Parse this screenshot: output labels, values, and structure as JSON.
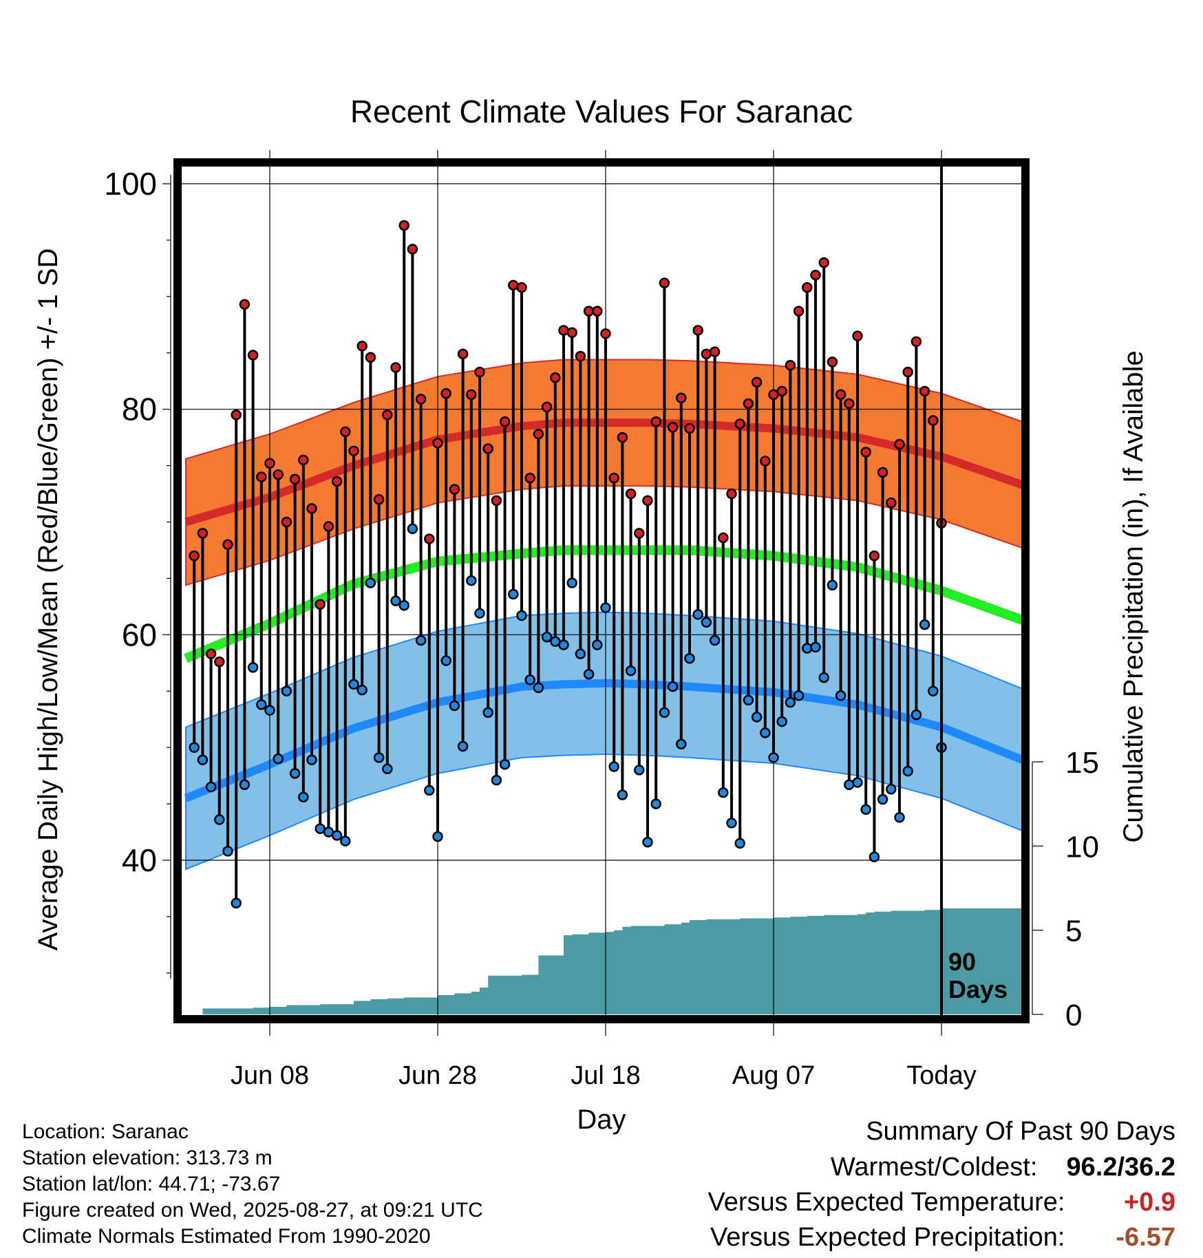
{
  "chart_data": {
    "type": "line",
    "title": "Recent Climate Values For Saranac",
    "xlabel": "Day",
    "ylabel": "Average Daily High/Low/Mean (Red/Blue/Green) +/- 1 SD",
    "y2label": "Cumulative Precipitation (in), If Available",
    "ylim": [
      25,
      102
    ],
    "y2lim": [
      0,
      45
    ],
    "yticks": [
      40,
      60,
      80,
      100
    ],
    "y2ticks": [
      0,
      5,
      10,
      15
    ],
    "xticks": [
      "Jun 08",
      "Jun 28",
      "Jul 18",
      "Aug 07",
      "Today"
    ],
    "xtick_days": [
      10,
      30,
      50,
      70,
      90
    ],
    "xlim": [
      0,
      100
    ],
    "period_label": "90 Days",
    "grid": true,
    "colors": {
      "high_band": "#f47a30",
      "high_mean": "#d42a2a",
      "low_band": "#82c0e8",
      "low_mean": "#1e88ff",
      "mean": "#22ee22",
      "precip": "#4a9ba5",
      "high_dot": "#d42020",
      "low_dot": "#2288dd",
      "plus": "#cc2222",
      "minus": "#a0522d"
    },
    "normal_days": [
      0,
      10,
      20,
      30,
      40,
      45,
      50,
      55,
      60,
      70,
      80,
      90,
      100
    ],
    "normal_high": [
      70.0,
      72.2,
      75.0,
      77.3,
      78.5,
      78.8,
      78.8,
      78.8,
      78.7,
      78.3,
      77.5,
      75.8,
      73.2
    ],
    "normal_high_sd": 5.6,
    "normal_low": [
      45.5,
      48.5,
      51.7,
      54.0,
      55.4,
      55.6,
      55.7,
      55.6,
      55.4,
      54.9,
      53.8,
      51.8,
      48.8
    ],
    "normal_low_sd": 6.3,
    "normal_mean": [
      57.9,
      61.0,
      64.5,
      66.5,
      67.2,
      67.5,
      67.5,
      67.5,
      67.5,
      67.0,
      66.0,
      63.9,
      61.2
    ],
    "series": [
      {
        "name": "High",
        "values": [
          67.0,
          69.0,
          58.3,
          57.6,
          68.0,
          79.5,
          89.3,
          84.8,
          74.0,
          75.2,
          74.2,
          70.0,
          73.8,
          75.5,
          71.2,
          62.7,
          69.6,
          73.6,
          78.0,
          76.3,
          85.6,
          84.6,
          72.0,
          79.5,
          83.7,
          96.3,
          94.2,
          80.9,
          68.5,
          77.0,
          81.4,
          72.9,
          84.9,
          81.3,
          83.3,
          76.5,
          71.9,
          78.9,
          91.0,
          90.8,
          73.9,
          77.8,
          80.2,
          82.8,
          87.0,
          86.8,
          84.7,
          88.7,
          88.7,
          86.7,
          73.9,
          77.5,
          72.5,
          69.0,
          71.9,
          78.9,
          91.2,
          78.4,
          81.0,
          78.3,
          87.0,
          84.9,
          85.1,
          68.6,
          72.5,
          78.7,
          80.5,
          82.4,
          75.4,
          81.3,
          81.6,
          83.9,
          88.7,
          90.8,
          91.9,
          93.0,
          84.2,
          81.3,
          80.5,
          86.5,
          76.2,
          67.0,
          74.4,
          71.7,
          76.9,
          83.3,
          86.0,
          81.6,
          79.0,
          69.9
        ]
      },
      {
        "name": "Low",
        "values": [
          50.0,
          48.9,
          46.5,
          43.6,
          40.8,
          36.2,
          46.7,
          57.1,
          53.8,
          53.3,
          49.0,
          55.0,
          47.7,
          45.6,
          48.9,
          42.8,
          42.5,
          42.2,
          41.7,
          55.6,
          55.1,
          64.6,
          49.1,
          48.1,
          63.0,
          62.6,
          69.4,
          59.5,
          46.2,
          42.1,
          57.7,
          53.7,
          50.1,
          64.8,
          61.9,
          53.1,
          47.1,
          48.5,
          63.6,
          61.7,
          56.0,
          55.3,
          59.8,
          59.4,
          59.1,
          64.6,
          58.3,
          56.5,
          59.1,
          62.4,
          48.3,
          45.8,
          56.8,
          48.0,
          41.6,
          45.0,
          53.1,
          55.4,
          50.3,
          57.9,
          61.8,
          61.1,
          59.5,
          46.0,
          43.3,
          41.5,
          54.2,
          52.7,
          51.3,
          49.1,
          52.3,
          54.0,
          54.6,
          58.8,
          58.9,
          56.2,
          64.4,
          54.6,
          46.7,
          46.9,
          44.5,
          40.3,
          45.4,
          46.3,
          43.8,
          47.9,
          52.9,
          60.9,
          55.0,
          50.0
        ]
      },
      {
        "name": "Cumulative Precipitation",
        "days": [
          2,
          5,
          8,
          10,
          12,
          16,
          20,
          22,
          24,
          26,
          30,
          32,
          34,
          35,
          36,
          40,
          42,
          43,
          45,
          46,
          47,
          48,
          50,
          51,
          52,
          53,
          55,
          57,
          58,
          59,
          60,
          62,
          64,
          66,
          68,
          70,
          72,
          74,
          76,
          78,
          80,
          81,
          82,
          84,
          86,
          88,
          90,
          99.5
        ],
        "values": [
          0.35,
          0.35,
          0.4,
          0.45,
          0.55,
          0.6,
          0.8,
          0.9,
          0.95,
          1.0,
          1.15,
          1.25,
          1.35,
          1.6,
          2.3,
          2.35,
          3.5,
          3.5,
          4.7,
          4.75,
          4.75,
          4.85,
          4.9,
          5.0,
          5.2,
          5.25,
          5.25,
          5.35,
          5.35,
          5.45,
          5.6,
          5.65,
          5.65,
          5.7,
          5.7,
          5.75,
          5.8,
          5.85,
          5.9,
          5.9,
          5.95,
          6.05,
          6.1,
          6.15,
          6.15,
          6.2,
          6.3,
          6.3
        ]
      }
    ]
  },
  "footer": {
    "location": "Location: Saranac",
    "elevation": "Station elevation: 313.73 m",
    "latlon": "Station lat/lon: 44.71; -73.67",
    "created": "Figure created on Wed, 2025-08-27, at 09:21 UTC",
    "normals": "Climate Normals Estimated From 1990-2020"
  },
  "summary": {
    "heading": "Summary Of Past 90 Days",
    "warmest_label": "Warmest/Coldest:",
    "warmest_value": "96.2/36.2",
    "temp_label": "Versus Expected Temperature:",
    "temp_value": "+0.9",
    "precip_label": "Versus Expected Precipitation:",
    "precip_value": "-6.57"
  }
}
